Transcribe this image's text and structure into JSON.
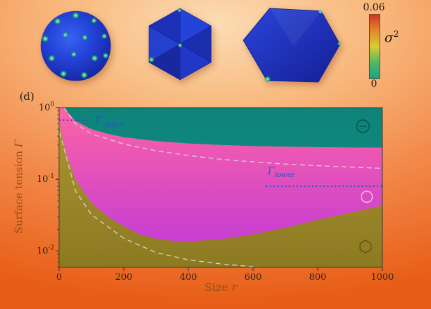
{
  "panel_label": "(d)",
  "colorbar": {
    "top_label": "0.06",
    "bottom_label": "0",
    "symbol": "σ",
    "symbol_exponent": "2",
    "colors": [
      "#d1342b",
      "#e2862c",
      "#d6ce30",
      "#4fba62",
      "#16a38f"
    ]
  },
  "chart_data": {
    "type": "area",
    "title": "",
    "xlabel": {
      "text": "Size",
      "var": "r"
    },
    "ylabel": {
      "text": "Surface tension",
      "var": "Γ"
    },
    "xlim": [
      0,
      1000
    ],
    "ylim": [
      0.0059,
      1.0
    ],
    "x_ticks": [
      0,
      200,
      400,
      600,
      800,
      1000
    ],
    "y_tick_exponents": [
      0,
      -1,
      -2
    ],
    "grid": false,
    "legend_position": "none",
    "regions": [
      {
        "name": "buckled",
        "label_icon": "circle-minus",
        "color_top": "#0d837a",
        "color_bottom": "#10877d",
        "icon_color": "#07564f",
        "icon_pos": [
          940,
          0.55
        ]
      },
      {
        "name": "sphere",
        "label_icon": "circle",
        "color_top": "#ff63a6",
        "color_bottom": "#c63ed2",
        "icon_color": "#ffc2dd",
        "icon_pos": [
          952,
          0.057
        ]
      },
      {
        "name": "faceted",
        "label_icon": "hexagon",
        "color_top": "#ab9430",
        "color_bottom": "#8c7a22",
        "icon_color": "#5f5313",
        "icon_pos": [
          948,
          0.0115
        ]
      }
    ],
    "boundaries": {
      "upper_solid": [
        [
          15,
          1.0
        ],
        [
          50,
          0.65
        ],
        [
          100,
          0.5
        ],
        [
          150,
          0.43
        ],
        [
          200,
          0.385
        ],
        [
          300,
          0.34
        ],
        [
          400,
          0.315
        ],
        [
          500,
          0.3
        ],
        [
          600,
          0.29
        ],
        [
          700,
          0.285
        ],
        [
          800,
          0.28
        ],
        [
          900,
          0.277
        ],
        [
          1000,
          0.275
        ]
      ],
      "upper_dashed": [
        [
          15,
          1.0
        ],
        [
          50,
          0.6
        ],
        [
          100,
          0.43
        ],
        [
          200,
          0.31
        ],
        [
          300,
          0.25
        ],
        [
          400,
          0.215
        ],
        [
          500,
          0.19
        ],
        [
          600,
          0.175
        ],
        [
          700,
          0.163
        ],
        [
          800,
          0.155
        ],
        [
          900,
          0.148
        ],
        [
          1000,
          0.142
        ]
      ],
      "lower_solid": [
        [
          2,
          0.6
        ],
        [
          20,
          0.24
        ],
        [
          50,
          0.1
        ],
        [
          100,
          0.047
        ],
        [
          150,
          0.03
        ],
        [
          200,
          0.022
        ],
        [
          250,
          0.017
        ],
        [
          300,
          0.0148
        ],
        [
          350,
          0.0138
        ],
        [
          400,
          0.0135
        ],
        [
          500,
          0.0145
        ],
        [
          600,
          0.017
        ],
        [
          700,
          0.021
        ],
        [
          800,
          0.027
        ],
        [
          900,
          0.034
        ],
        [
          1000,
          0.043
        ]
      ],
      "lower_dashed": [
        [
          2,
          0.45
        ],
        [
          50,
          0.07
        ],
        [
          100,
          0.032
        ],
        [
          200,
          0.015
        ],
        [
          300,
          0.0095
        ],
        [
          400,
          0.0075
        ],
        [
          500,
          0.0066
        ],
        [
          620,
          0.0059
        ]
      ]
    },
    "hlines": [
      {
        "name": "gamma-upper",
        "symbol": "Γ",
        "sub": "upper",
        "value": 0.67,
        "x_range": [
          0,
          92
        ],
        "label_pos": [
          112,
          0.6
        ],
        "color": "#2a52c8"
      },
      {
        "name": "gamma-lower",
        "symbol": "Γ",
        "sub": "lower",
        "value": 0.08,
        "x_range": [
          640,
          1000
        ],
        "label_pos": [
          645,
          0.118
        ],
        "color": "#2a52c8"
      }
    ]
  }
}
